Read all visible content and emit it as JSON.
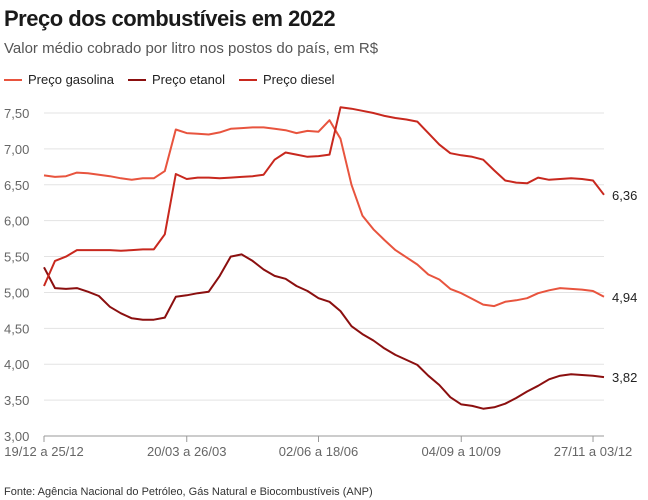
{
  "chart_data": {
    "type": "line",
    "title": "Preço dos combustíveis em 2022",
    "subtitle": "Valor médio cobrado por litro nos postos do país, em R$",
    "source": "Fonte: Agência Nacional do Petróleo, Gás Natural e Biocombustíveis (ANP)",
    "ylim": [
      3.0,
      7.5
    ],
    "yticks": [
      "3,00",
      "3,50",
      "4,00",
      "4,50",
      "5,00",
      "5,50",
      "6,00",
      "6,50",
      "7,00",
      "7,50"
    ],
    "ytick_values": [
      3.0,
      3.5,
      4.0,
      4.5,
      5.0,
      5.5,
      6.0,
      6.5,
      7.0,
      7.5
    ],
    "xtick_labels": [
      {
        "label": "19/12 a 25/12",
        "index": 0
      },
      {
        "label": "20/03 a 26/03",
        "index": 13
      },
      {
        "label": "02/06 a 18/06",
        "index": 25
      },
      {
        "label": "04/09 a 10/09",
        "index": 38
      },
      {
        "label": "27/11 a 03/12",
        "index": 50
      }
    ],
    "grid": true,
    "legend_position": "top-left",
    "series": [
      {
        "name": "Preço gasolina",
        "color": "#e8543e",
        "end_label": "4,94",
        "values": [
          6.63,
          6.61,
          6.62,
          6.67,
          6.66,
          6.64,
          6.62,
          6.59,
          6.57,
          6.59,
          6.59,
          6.69,
          7.27,
          7.22,
          7.21,
          7.2,
          7.23,
          7.28,
          7.29,
          7.3,
          7.3,
          7.28,
          7.26,
          7.22,
          7.25,
          7.24,
          7.4,
          7.14,
          6.5,
          6.07,
          5.88,
          5.73,
          5.59,
          5.49,
          5.39,
          5.25,
          5.18,
          5.05,
          4.99,
          4.91,
          4.83,
          4.81,
          4.87,
          4.89,
          4.92,
          4.99,
          5.03,
          5.06,
          5.05,
          5.04,
          5.02,
          4.94
        ]
      },
      {
        "name": "Preço etanol",
        "color": "#8b0f0f",
        "end_label": "3,82",
        "values": [
          5.35,
          5.06,
          5.05,
          5.06,
          5.01,
          4.95,
          4.8,
          4.71,
          4.64,
          4.62,
          4.62,
          4.65,
          4.94,
          4.96,
          4.99,
          5.01,
          5.23,
          5.5,
          5.53,
          5.44,
          5.32,
          5.23,
          5.19,
          5.09,
          5.02,
          4.92,
          4.87,
          4.74,
          4.53,
          4.42,
          4.33,
          4.22,
          4.13,
          4.06,
          3.99,
          3.84,
          3.71,
          3.54,
          3.44,
          3.42,
          3.38,
          3.4,
          3.45,
          3.53,
          3.62,
          3.7,
          3.79,
          3.84,
          3.86,
          3.85,
          3.84,
          3.82
        ]
      },
      {
        "name": "Preço diesel",
        "color": "#c8281e",
        "end_label": "6,36",
        "values": [
          5.09,
          5.44,
          5.5,
          5.59,
          5.59,
          5.59,
          5.59,
          5.58,
          5.59,
          5.6,
          5.6,
          5.81,
          6.65,
          6.58,
          6.6,
          6.6,
          6.59,
          6.6,
          6.61,
          6.62,
          6.64,
          6.85,
          6.95,
          6.92,
          6.89,
          6.9,
          6.92,
          7.58,
          7.56,
          7.53,
          7.5,
          7.46,
          7.43,
          7.41,
          7.38,
          7.22,
          7.06,
          6.94,
          6.91,
          6.89,
          6.85,
          6.7,
          6.56,
          6.53,
          6.52,
          6.6,
          6.57,
          6.58,
          6.59,
          6.58,
          6.56,
          6.36
        ]
      }
    ]
  }
}
